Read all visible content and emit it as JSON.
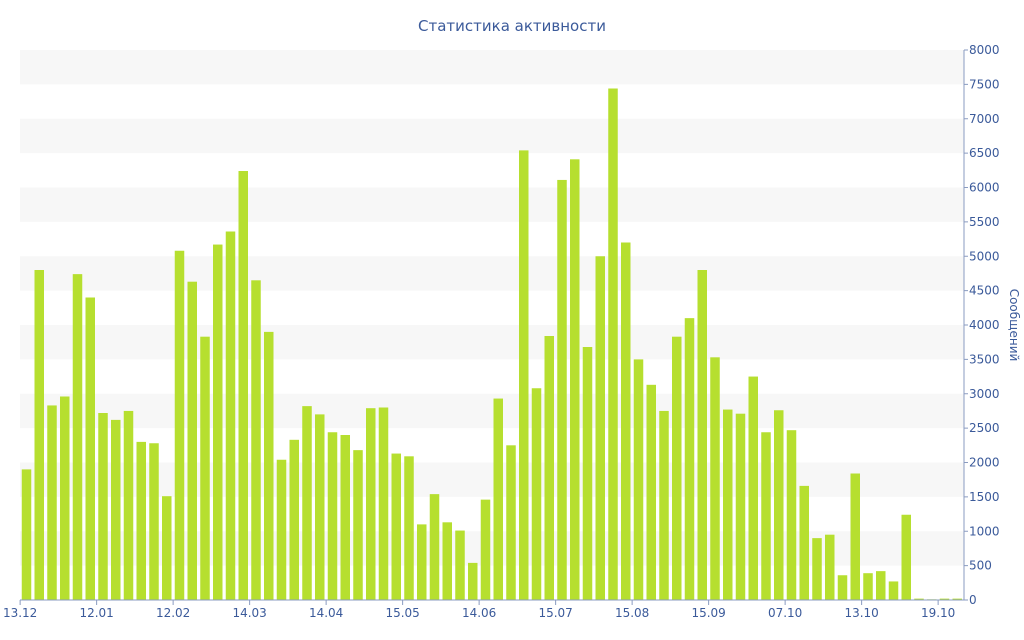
{
  "chart_data": {
    "type": "bar",
    "title": "Статистика активности",
    "ylabel": "Сообщений",
    "xlabel": "",
    "ylim": [
      0,
      8000
    ],
    "yticks": [
      0,
      500,
      1000,
      1500,
      2000,
      2500,
      3000,
      3500,
      4000,
      4500,
      5000,
      5500,
      6000,
      6500,
      7000,
      7500,
      8000
    ],
    "xtick_labels": [
      {
        "index": 0,
        "label": "13.12"
      },
      {
        "index": 6,
        "label": "12.01"
      },
      {
        "index": 12,
        "label": "12.02"
      },
      {
        "index": 18,
        "label": "14.03"
      },
      {
        "index": 24,
        "label": "14.04"
      },
      {
        "index": 30,
        "label": "15.05"
      },
      {
        "index": 36,
        "label": "14.06"
      },
      {
        "index": 42,
        "label": "15.07"
      },
      {
        "index": 48,
        "label": "15.08"
      },
      {
        "index": 54,
        "label": "15.09"
      },
      {
        "index": 60,
        "label": "07.10"
      },
      {
        "index": 66,
        "label": "13.10"
      },
      {
        "index": 72,
        "label": "19.10"
      }
    ],
    "grid": "alternating horizontal bands",
    "yaxis_side": "right",
    "bar_color": "#b6df2f",
    "values": [
      1900,
      4800,
      2830,
      2960,
      4740,
      4400,
      2720,
      2620,
      2750,
      2300,
      2280,
      1510,
      5080,
      4630,
      3830,
      5170,
      5360,
      6240,
      4650,
      3900,
      2040,
      2330,
      2820,
      2700,
      2440,
      2400,
      2180,
      2790,
      2800,
      2130,
      2090,
      1100,
      1540,
      1130,
      1010,
      540,
      1460,
      2930,
      2250,
      6540,
      3080,
      3840,
      6110,
      6410,
      3680,
      5000,
      7440,
      5200,
      3500,
      3130,
      2750,
      3830,
      4100,
      4800,
      3530,
      2770,
      2710,
      3250,
      2440,
      2760,
      2470,
      1660,
      900,
      950,
      360,
      1840,
      390,
      420,
      270,
      1240,
      20,
      10,
      20,
      20
    ]
  }
}
